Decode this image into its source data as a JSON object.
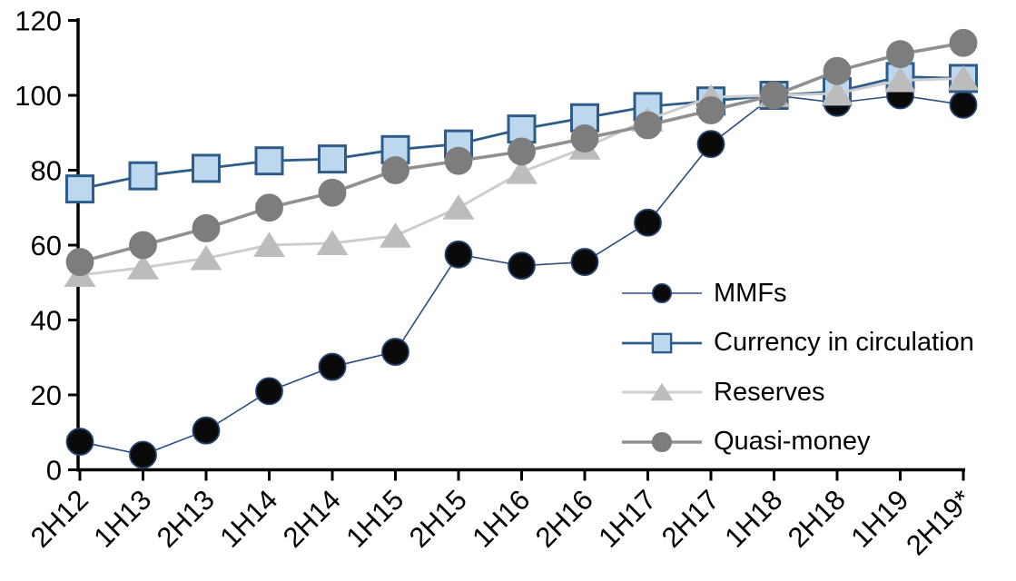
{
  "chart_data": {
    "type": "line",
    "title": "",
    "xlabel": "",
    "ylabel": "",
    "categories": [
      "2H12",
      "1H13",
      "2H13",
      "1H14",
      "2H14",
      "1H15",
      "2H15",
      "1H16",
      "2H16",
      "1H17",
      "2H17",
      "1H18",
      "2H18",
      "1H19",
      "2H19*"
    ],
    "series": [
      {
        "name": "MMFs",
        "marker": "circle",
        "marker_color": "#0a0a0a",
        "marker_border": "#24426e",
        "line_color": "#2e4d80",
        "line_width": 1.6,
        "values": [
          7.5,
          4,
          10.5,
          21,
          27.5,
          31.5,
          57.5,
          54.5,
          55.5,
          66,
          87,
          100,
          98,
          100,
          97.5
        ]
      },
      {
        "name": "Currency in circulation",
        "marker": "square",
        "marker_color": "#bdd7ee",
        "marker_border": "#2e5c8a",
        "line_color": "#2e5c8a",
        "line_width": 2.8,
        "values": [
          75,
          78.5,
          80.5,
          82.5,
          83,
          85.5,
          87,
          91,
          94,
          97,
          98.5,
          100,
          101,
          105,
          104.5
        ]
      },
      {
        "name": "Reserves",
        "marker": "triangle",
        "marker_color": "#bcbcbc",
        "marker_border": "#bcbcbc",
        "line_color": "#cdcdcd",
        "line_width": 3,
        "values": [
          52,
          54,
          56.5,
          60,
          60.5,
          62.5,
          70,
          79.5,
          86,
          93.5,
          99.5,
          100,
          100.5,
          104,
          104.5
        ]
      },
      {
        "name": "Quasi-money",
        "marker": "circle",
        "marker_color": "#7d7d7d",
        "marker_border": "#7d7d7d",
        "line_color": "#909090",
        "line_width": 3.6,
        "values": [
          55.5,
          60,
          64.5,
          70,
          74,
          80,
          82.5,
          85,
          88.5,
          92,
          96,
          100,
          106.5,
          111,
          114
        ]
      }
    ],
    "ylim": [
      0,
      120
    ],
    "ytick_step": 20,
    "ytick_labels": [
      "0",
      "20",
      "40",
      "60",
      "80",
      "100",
      "120"
    ],
    "grid": false,
    "legend_position": "inside-right",
    "axis_color": "#000000",
    "label_color": "#000000"
  }
}
